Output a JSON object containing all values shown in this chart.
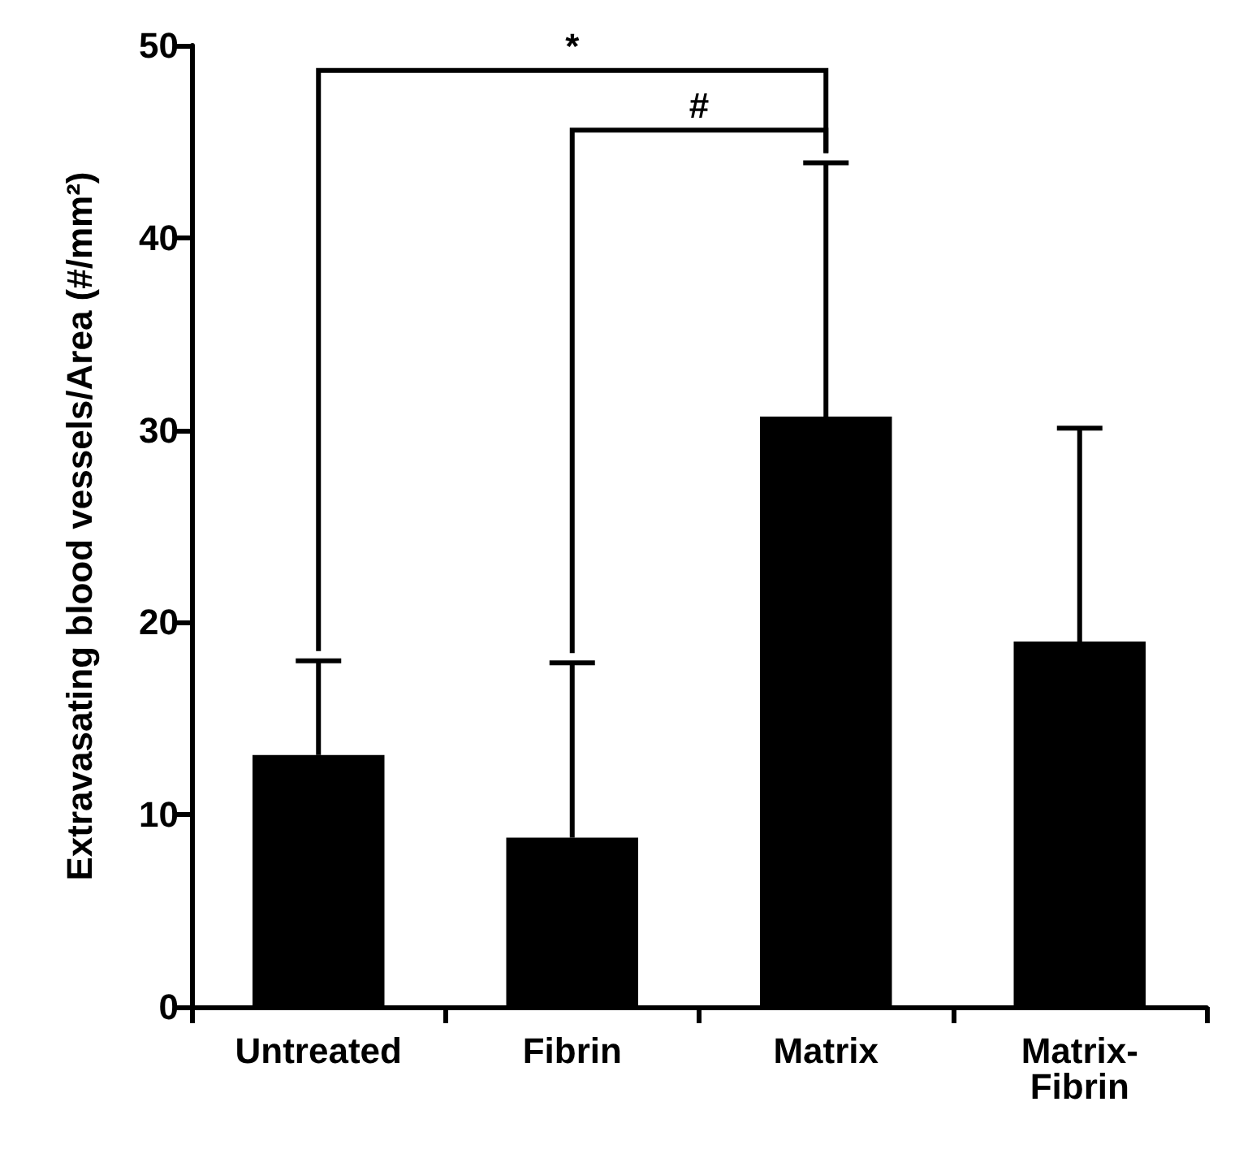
{
  "chart_data": {
    "type": "bar",
    "ylabel": "Extravasating blood vessels/Area (#/mm²)",
    "categories": [
      "Untreated",
      "Fibrin",
      "Matrix",
      "Matrix-Fibrin"
    ],
    "values": [
      13.1,
      8.8,
      30.7,
      19
    ],
    "errors": [
      [
        13.1,
        18
      ],
      [
        8.8,
        17.9
      ],
      [
        30.7,
        43.9
      ],
      [
        19,
        30.1
      ]
    ],
    "color": "#000000",
    "ylim": [
      0,
      50
    ],
    "yticks": [
      0,
      10,
      20,
      30,
      40,
      50
    ],
    "grid": false,
    "annotations": [
      "*",
      "#"
    ]
  }
}
